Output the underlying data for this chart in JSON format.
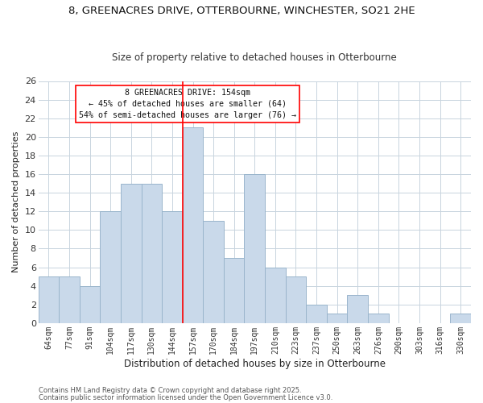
{
  "title_line1": "8, GREENACRES DRIVE, OTTERBOURNE, WINCHESTER, SO21 2HE",
  "title_line2": "Size of property relative to detached houses in Otterbourne",
  "xlabel": "Distribution of detached houses by size in Otterbourne",
  "ylabel": "Number of detached properties",
  "bar_labels": [
    "64sqm",
    "77sqm",
    "91sqm",
    "104sqm",
    "117sqm",
    "130sqm",
    "144sqm",
    "157sqm",
    "170sqm",
    "184sqm",
    "197sqm",
    "210sqm",
    "223sqm",
    "237sqm",
    "250sqm",
    "263sqm",
    "276sqm",
    "290sqm",
    "303sqm",
    "316sqm",
    "330sqm"
  ],
  "bar_values": [
    5,
    5,
    4,
    12,
    15,
    15,
    12,
    21,
    11,
    7,
    16,
    6,
    5,
    2,
    1,
    3,
    1,
    0,
    0,
    0,
    1
  ],
  "bar_color": "#c9d9ea",
  "bar_edgecolor": "#9ab5cc",
  "reference_line_index": 7,
  "reference_line_color": "red",
  "annotation_title": "8 GREENACRES DRIVE: 154sqm",
  "annotation_line1": "← 45% of detached houses are smaller (64)",
  "annotation_line2": "54% of semi-detached houses are larger (76) →",
  "annotation_box_edgecolor": "red",
  "ylim": [
    0,
    26
  ],
  "yticks": [
    0,
    2,
    4,
    6,
    8,
    10,
    12,
    14,
    16,
    18,
    20,
    22,
    24,
    26
  ],
  "footer_line1": "Contains HM Land Registry data © Crown copyright and database right 2025.",
  "footer_line2": "Contains public sector information licensed under the Open Government Licence v3.0.",
  "background_color": "#ffffff",
  "grid_color": "#c8d4de"
}
